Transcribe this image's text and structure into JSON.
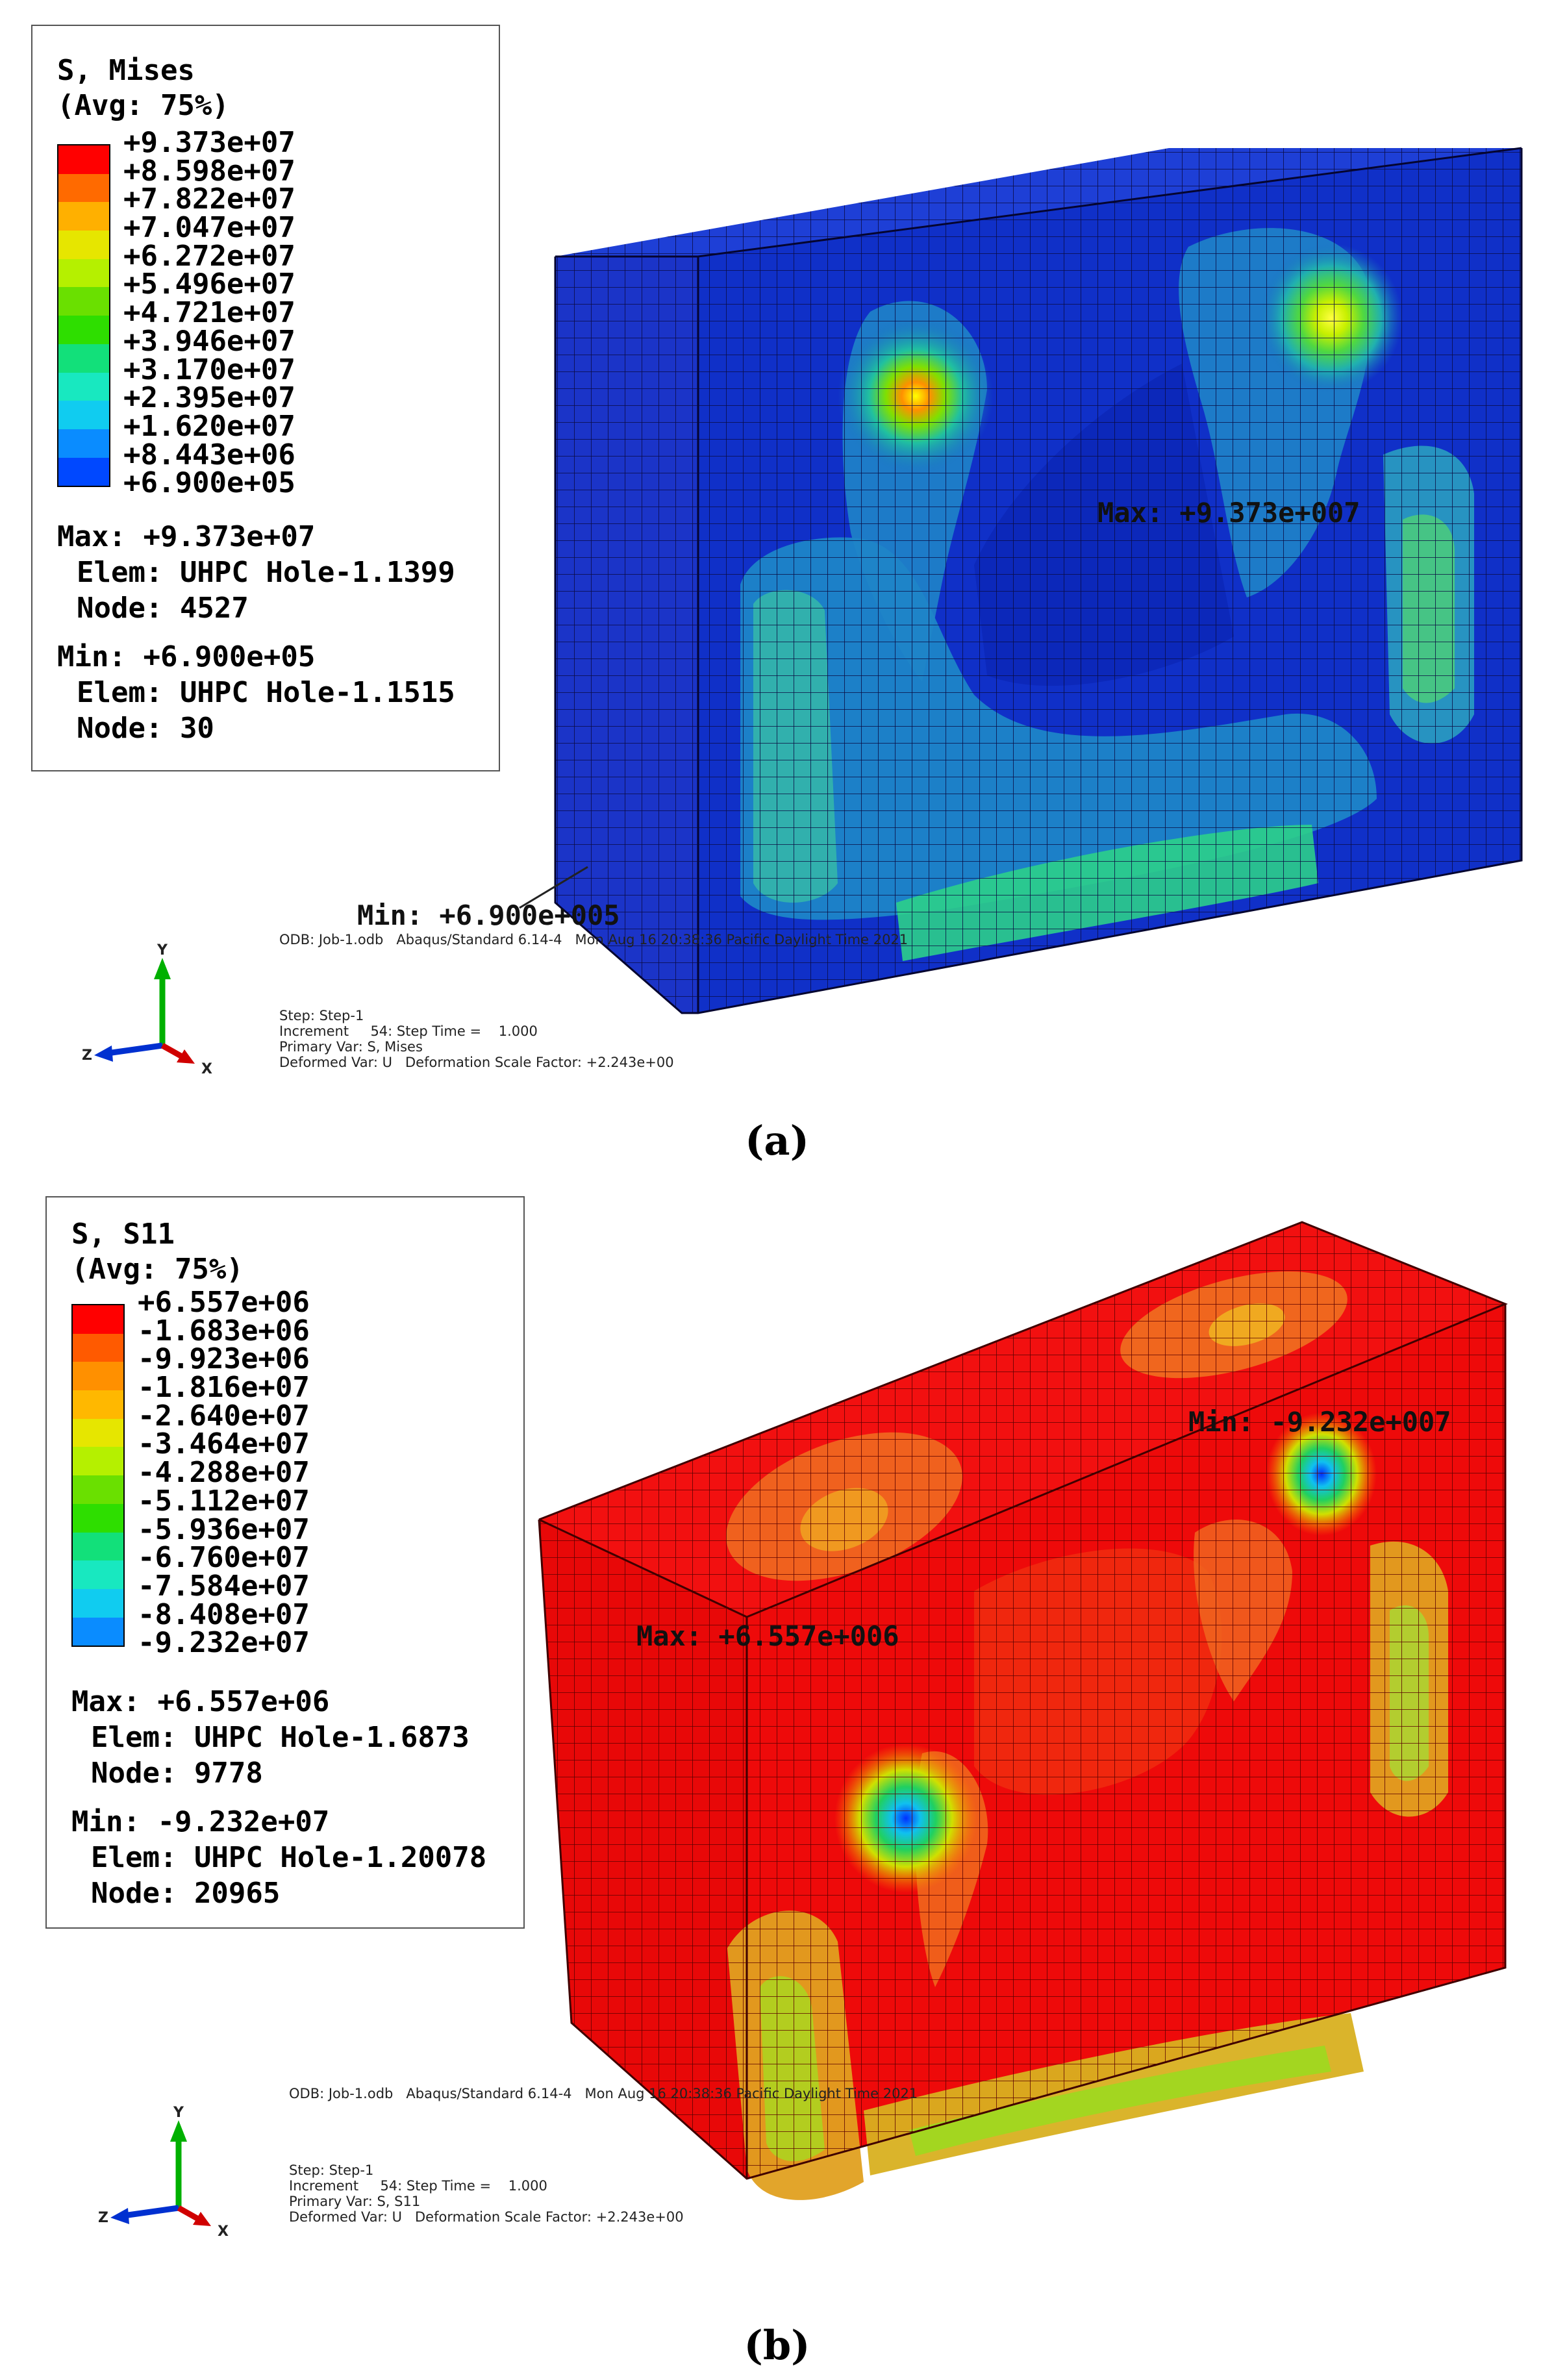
{
  "panel_a": {
    "caption": "(a)",
    "legend": {
      "title_line1": "S, Mises",
      "title_line2": "(Avg: 75%)",
      "values": [
        "+9.373e+07",
        "+8.598e+07",
        "+7.822e+07",
        "+7.047e+07",
        "+6.272e+07",
        "+5.496e+07",
        "+4.721e+07",
        "+3.946e+07",
        "+3.170e+07",
        "+2.395e+07",
        "+1.620e+07",
        "+8.443e+06",
        "+6.900e+05"
      ],
      "colors": [
        "#ff0000",
        "#ff6a00",
        "#ffb000",
        "#e6e600",
        "#b5f000",
        "#6ae000",
        "#2ede00",
        "#12e07a",
        "#18e8c0",
        "#10ccf0",
        "#0a8cff",
        "#0048ff",
        "#0000ff"
      ],
      "max_label": "Max: +9.373e+07",
      "max_elem": "Elem: UHPC Hole-1.1399",
      "max_node": "Node: 4527",
      "min_label": "Min: +6.900e+05",
      "min_elem": "Elem: UHPC Hole-1.1515",
      "min_node": "Node: 30"
    },
    "annot_max": "Max: +9.373e+007",
    "annot_min": "Min: +6.900e+005",
    "odb_line": "ODB: Job-1.odb   Abaqus/Standard 6.14-4   Mon Aug 16 20:38:36 Pacific Daylight Time 2021",
    "step_line1": "Step: Step-1",
    "step_line2": "Increment     54: Step Time =    1.000",
    "step_line3": "Primary Var: S, Mises",
    "step_line4": "Deformed Var: U   Deformation Scale Factor: +2.243e+00",
    "axes": {
      "y": "Y",
      "z": "Z",
      "x": "X"
    }
  },
  "panel_b": {
    "caption": "(b)",
    "legend": {
      "title_line1": "S, S11",
      "title_line2": "(Avg: 75%)",
      "values": [
        "+6.557e+06",
        "-1.683e+06",
        "-9.923e+06",
        "-1.816e+07",
        "-2.640e+07",
        "-3.464e+07",
        "-4.288e+07",
        "-5.112e+07",
        "-5.936e+07",
        "-6.760e+07",
        "-7.584e+07",
        "-8.408e+07",
        "-9.232e+07"
      ],
      "colors": [
        "#ff0000",
        "#ff5a00",
        "#ff9000",
        "#ffb800",
        "#e6e600",
        "#b5f000",
        "#6ae000",
        "#2ede00",
        "#12e07a",
        "#18e8c0",
        "#10ccf0",
        "#0a8cff",
        "#0000ff"
      ],
      "max_label": "Max: +6.557e+06",
      "max_elem": "Elem: UHPC Hole-1.6873",
      "max_node": "Node: 9778",
      "min_label": "Min: -9.232e+07",
      "min_elem": "Elem: UHPC Hole-1.20078",
      "min_node": "Node: 20965"
    },
    "annot_max": "Max: +6.557e+006",
    "annot_min": "Min: -9.232e+007",
    "odb_line": "ODB: Job-1.odb   Abaqus/Standard 6.14-4   Mon Aug 16 20:38:36 Pacific Daylight Time 2021",
    "step_line1": "Step: Step-1",
    "step_line2": "Increment     54: Step Time =    1.000",
    "step_line3": "Primary Var: S, S11",
    "step_line4": "Deformed Var: U   Deformation Scale Factor: +2.243e+00",
    "axes": {
      "y": "Y",
      "z": "Z",
      "x": "X"
    }
  }
}
